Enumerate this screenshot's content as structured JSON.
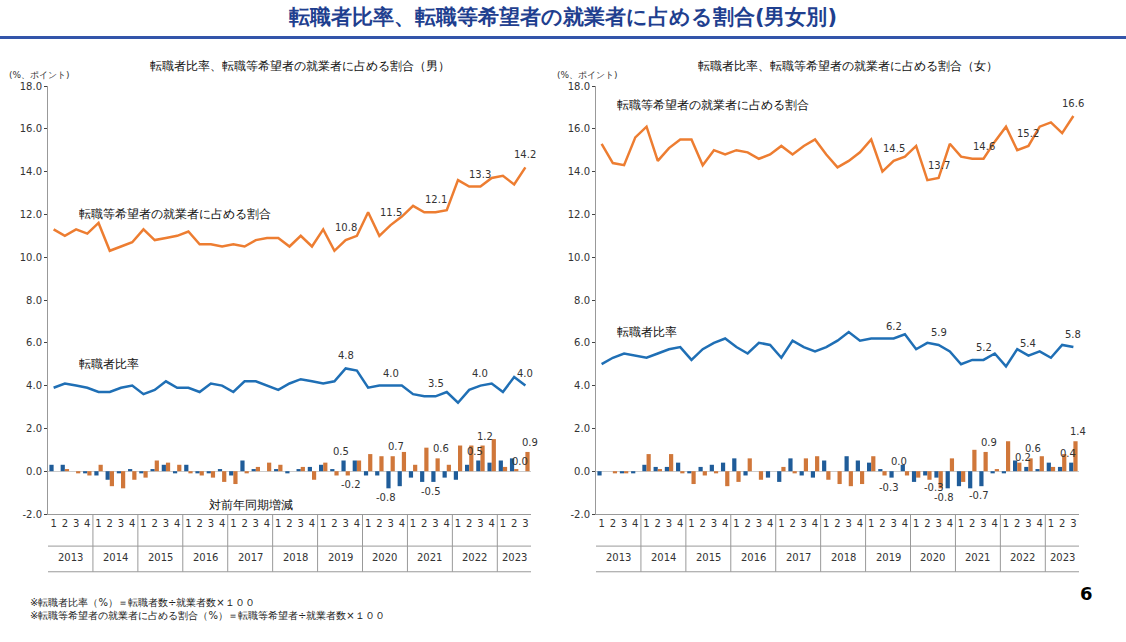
{
  "page_title": "転職者比率、転職等希望者の就業者に占める割合(男女別)",
  "notes": [
    "※転職者比率（%）＝転職者数÷就業者数×１００",
    "※転職等希望者の就業者に占める割合（%）＝転職等希望者÷就業者数×１００"
  ],
  "page_number": "6",
  "chart_data": [
    {
      "type": "line",
      "title": "転職者比率、転職等希望者の就業者に占める割合（男）",
      "y_unit": "(%、ポイント)",
      "bar_caption": "対前年同期増減",
      "categories": [
        "1",
        "2",
        "3",
        "4",
        "1",
        "2",
        "3",
        "4",
        "1",
        "2",
        "3",
        "4",
        "1",
        "2",
        "3",
        "4",
        "1",
        "2",
        "3",
        "4",
        "1",
        "2",
        "3",
        "4",
        "1",
        "2",
        "3",
        "4",
        "1",
        "2",
        "3",
        "4",
        "1",
        "2",
        "3",
        "4",
        "1",
        "2",
        "3",
        "4",
        "1",
        "2",
        "3"
      ],
      "x_groups": [
        "2013",
        "2013",
        "2013",
        "2013",
        "2014",
        "2014",
        "2014",
        "2014",
        "2015",
        "2015",
        "2015",
        "2015",
        "2016",
        "2016",
        "2016",
        "2016",
        "2017",
        "2017",
        "2017",
        "2017",
        "2018",
        "2018",
        "2018",
        "2018",
        "2019",
        "2019",
        "2019",
        "2019",
        "2020",
        "2020",
        "2020",
        "2020",
        "2021",
        "2021",
        "2021",
        "2021",
        "2022",
        "2022",
        "2022",
        "2022",
        "2023",
        "2023",
        "2023"
      ],
      "ylim": [
        -2,
        18
      ],
      "yticks": [
        {
          "value": -2,
          "label": "-2.0"
        },
        {
          "value": 0,
          "label": "0.0"
        },
        {
          "value": 2,
          "label": "2.0"
        },
        {
          "value": 4,
          "label": "4.0"
        },
        {
          "value": 6,
          "label": "6.0"
        },
        {
          "value": 8,
          "label": "8.0"
        },
        {
          "value": 10,
          "label": "10.0"
        },
        {
          "value": 12,
          "label": "12.0"
        },
        {
          "value": 14,
          "label": "14.0"
        },
        {
          "value": 16,
          "label": "16.0"
        },
        {
          "value": 18,
          "label": "18.0"
        }
      ],
      "grid": false,
      "series": [
        {
          "name": "転職等希望者の就業者に占める割合",
          "type": "line",
          "color": "#ED7D31",
          "values": [
            11.3,
            11.0,
            11.3,
            11.1,
            11.6,
            10.3,
            10.5,
            10.7,
            11.3,
            10.8,
            10.9,
            11.0,
            11.2,
            10.6,
            10.6,
            10.5,
            10.6,
            10.5,
            10.8,
            10.9,
            10.9,
            10.5,
            11.0,
            10.5,
            11.3,
            10.3,
            10.8,
            11.0,
            12.1,
            11.0,
            11.5,
            11.9,
            12.4,
            12.1,
            12.1,
            12.2,
            13.6,
            13.3,
            13.3,
            13.7,
            13.8,
            13.4,
            14.2
          ]
        },
        {
          "name": "転職者比率",
          "type": "line",
          "color": "#1F6FB5",
          "values": [
            3.9,
            4.1,
            4.0,
            3.9,
            3.7,
            3.7,
            3.9,
            4.0,
            3.6,
            3.8,
            4.2,
            3.9,
            3.9,
            3.7,
            4.1,
            4.0,
            3.7,
            4.2,
            4.2,
            4.0,
            3.8,
            4.1,
            4.3,
            4.2,
            4.1,
            4.2,
            4.8,
            4.7,
            3.9,
            4.0,
            4.0,
            4.0,
            3.6,
            3.5,
            3.5,
            3.7,
            3.2,
            3.8,
            4.0,
            4.1,
            3.7,
            4.4,
            4.0
          ]
        },
        {
          "type": "bar",
          "color": "#1F5C99",
          "values": [
            0.3,
            0.3,
            0.0,
            -0.1,
            -0.2,
            -0.4,
            -0.1,
            0.1,
            -0.1,
            0.1,
            0.3,
            -0.1,
            0.3,
            -0.1,
            -0.1,
            0.1,
            -0.2,
            0.5,
            0.1,
            0.0,
            0.1,
            -0.1,
            0.1,
            0.2,
            0.3,
            0.1,
            0.5,
            0.5,
            -0.2,
            -0.2,
            -0.8,
            -0.7,
            -0.3,
            -0.5,
            -0.5,
            -0.3,
            -0.4,
            0.3,
            0.5,
            0.4,
            0.5,
            0.6,
            0.0
          ]
        },
        {
          "type": "bar",
          "color": "#D0773A",
          "values": [
            0.0,
            0.1,
            -0.1,
            -0.2,
            0.3,
            -0.7,
            -0.8,
            -0.4,
            -0.3,
            0.5,
            0.4,
            0.3,
            -0.1,
            -0.2,
            -0.3,
            -0.5,
            -0.6,
            -0.1,
            0.2,
            0.4,
            0.3,
            0.0,
            0.2,
            -0.4,
            0.4,
            -0.2,
            -0.2,
            0.5,
            0.8,
            0.7,
            0.7,
            0.9,
            0.3,
            1.1,
            0.6,
            0.3,
            1.2,
            1.2,
            1.2,
            1.5,
            0.2,
            0.1,
            0.9
          ]
        }
      ],
      "point_labels": [
        {
          "series": 0,
          "index": 26,
          "text": "10.8"
        },
        {
          "series": 0,
          "index": 30,
          "text": "11.5"
        },
        {
          "series": 0,
          "index": 34,
          "text": "12.1"
        },
        {
          "series": 0,
          "index": 38,
          "text": "13.3"
        },
        {
          "series": 0,
          "index": 42,
          "text": "14.2"
        },
        {
          "series": 1,
          "index": 26,
          "text": "4.8"
        },
        {
          "series": 1,
          "index": 30,
          "text": "4.0"
        },
        {
          "series": 1,
          "index": 34,
          "text": "3.5"
        },
        {
          "series": 1,
          "index": 38,
          "text": "4.0"
        },
        {
          "series": 1,
          "index": 42,
          "text": "4.0"
        },
        {
          "series": 2,
          "index": 26,
          "text": "0.5"
        },
        {
          "series": 2,
          "index": 30,
          "text": "-0.8"
        },
        {
          "series": 2,
          "index": 34,
          "text": "-0.5"
        },
        {
          "series": 2,
          "index": 38,
          "text": "0.5"
        },
        {
          "series": 2,
          "index": 42,
          "text": "0.0"
        },
        {
          "series": 3,
          "index": 26,
          "text": "-0.2"
        },
        {
          "series": 3,
          "index": 30,
          "text": "0.7"
        },
        {
          "series": 3,
          "index": 34,
          "text": "0.6"
        },
        {
          "series": 3,
          "index": 38,
          "text": "1.2"
        },
        {
          "series": 3,
          "index": 42,
          "text": "0.9"
        }
      ]
    },
    {
      "type": "line",
      "title": "転職者比率、転職等希望者の就業者に占める割合（女）",
      "y_unit": "(%、ポイント)",
      "categories": [
        "1",
        "2",
        "3",
        "4",
        "1",
        "2",
        "3",
        "4",
        "1",
        "2",
        "3",
        "4",
        "1",
        "2",
        "3",
        "4",
        "1",
        "2",
        "3",
        "4",
        "1",
        "2",
        "3",
        "4",
        "1",
        "2",
        "3",
        "4",
        "1",
        "2",
        "3",
        "4",
        "1",
        "2",
        "3",
        "4",
        "1",
        "2",
        "3",
        "4",
        "1",
        "2",
        "3"
      ],
      "x_groups": [
        "2013",
        "2013",
        "2013",
        "2013",
        "2014",
        "2014",
        "2014",
        "2014",
        "2015",
        "2015",
        "2015",
        "2015",
        "2016",
        "2016",
        "2016",
        "2016",
        "2017",
        "2017",
        "2017",
        "2017",
        "2018",
        "2018",
        "2018",
        "2018",
        "2019",
        "2019",
        "2019",
        "2019",
        "2020",
        "2020",
        "2020",
        "2020",
        "2021",
        "2021",
        "2021",
        "2021",
        "2022",
        "2022",
        "2022",
        "2022",
        "2023",
        "2023",
        "2023"
      ],
      "ylim": [
        -2,
        18
      ],
      "yticks": [
        {
          "value": -2,
          "label": "-2.0"
        },
        {
          "value": 0,
          "label": "0.0"
        },
        {
          "value": 2,
          "label": "2.0"
        },
        {
          "value": 4,
          "label": "4.0"
        },
        {
          "value": 6,
          "label": "6.0"
        },
        {
          "value": 8,
          "label": "8.0"
        },
        {
          "value": 10,
          "label": "10.0"
        },
        {
          "value": 12,
          "label": "12.0"
        },
        {
          "value": 14,
          "label": "14.0"
        },
        {
          "value": 16,
          "label": "16.0"
        },
        {
          "value": 18,
          "label": "18.0"
        }
      ],
      "grid": false,
      "series": [
        {
          "name": "転職等希望者の就業者に占める割合",
          "type": "line",
          "color": "#ED7D31",
          "values": [
            15.3,
            14.4,
            14.3,
            15.6,
            16.1,
            14.5,
            15.1,
            15.5,
            15.5,
            14.3,
            15.0,
            14.8,
            15.0,
            14.9,
            14.6,
            14.8,
            15.2,
            14.8,
            15.2,
            15.5,
            14.8,
            14.2,
            14.5,
            14.9,
            15.5,
            14.0,
            14.5,
            14.7,
            15.2,
            13.6,
            13.7,
            15.3,
            14.7,
            14.6,
            14.6,
            15.4,
            16.1,
            15.0,
            15.2,
            16.1,
            16.3,
            15.8,
            16.6
          ]
        },
        {
          "name": "転職者比率",
          "type": "line",
          "color": "#1F6FB5",
          "values": [
            5.0,
            5.3,
            5.5,
            5.4,
            5.3,
            5.5,
            5.7,
            5.8,
            5.2,
            5.7,
            6.0,
            6.2,
            5.8,
            5.5,
            6.0,
            5.9,
            5.3,
            6.1,
            5.8,
            5.6,
            5.8,
            6.1,
            6.5,
            6.1,
            6.2,
            6.2,
            6.2,
            6.4,
            5.7,
            6.0,
            5.9,
            5.6,
            5.0,
            5.2,
            5.2,
            5.5,
            4.9,
            5.7,
            5.4,
            5.6,
            5.3,
            5.9,
            5.8
          ]
        },
        {
          "type": "bar",
          "color": "#1F5C99",
          "values": [
            -0.2,
            0.0,
            -0.1,
            -0.1,
            0.3,
            0.2,
            0.2,
            0.4,
            -0.1,
            0.2,
            0.3,
            0.4,
            0.6,
            -0.2,
            0.0,
            -0.3,
            -0.5,
            0.6,
            -0.2,
            -0.3,
            0.5,
            0.0,
            0.7,
            0.5,
            0.4,
            0.1,
            -0.3,
            0.3,
            -0.5,
            -0.2,
            -0.3,
            -0.8,
            -0.7,
            -0.8,
            -0.7,
            -0.1,
            -0.1,
            0.5,
            0.2,
            0.1,
            0.4,
            0.2,
            0.4
          ]
        },
        {
          "type": "bar",
          "color": "#D0773A",
          "values": [
            0.0,
            -0.1,
            -0.1,
            0.0,
            0.8,
            0.1,
            0.8,
            -0.1,
            -0.6,
            -0.2,
            -0.1,
            -0.7,
            -0.5,
            0.6,
            -0.4,
            0.0,
            0.2,
            -0.1,
            0.6,
            0.7,
            -0.4,
            -0.6,
            -0.7,
            -0.6,
            0.7,
            -0.2,
            0.0,
            -0.2,
            -0.3,
            -0.4,
            -0.8,
            0.6,
            -0.5,
            1.0,
            0.9,
            0.1,
            1.4,
            0.4,
            0.6,
            0.7,
            0.2,
            0.8,
            1.4
          ]
        }
      ],
      "point_labels": [
        {
          "series": 0,
          "index": 26,
          "text": "14.5"
        },
        {
          "series": 0,
          "index": 30,
          "text": "13.7"
        },
        {
          "series": 0,
          "index": 34,
          "text": "14.6"
        },
        {
          "series": 0,
          "index": 38,
          "text": "15.2"
        },
        {
          "series": 0,
          "index": 42,
          "text": "16.6"
        },
        {
          "series": 1,
          "index": 26,
          "text": "6.2"
        },
        {
          "series": 1,
          "index": 30,
          "text": "5.9"
        },
        {
          "series": 1,
          "index": 34,
          "text": "5.2"
        },
        {
          "series": 1,
          "index": 38,
          "text": "5.4"
        },
        {
          "series": 1,
          "index": 42,
          "text": "5.8"
        },
        {
          "series": 2,
          "index": 26,
          "text": "-0.3"
        },
        {
          "series": 2,
          "index": 30,
          "text": "-0.3"
        },
        {
          "series": 2,
          "index": 34,
          "text": "-0.7"
        },
        {
          "series": 2,
          "index": 38,
          "text": "0.2"
        },
        {
          "series": 2,
          "index": 42,
          "text": "0.4"
        },
        {
          "series": 3,
          "index": 26,
          "text": "0.0"
        },
        {
          "series": 3,
          "index": 30,
          "text": "-0.8"
        },
        {
          "series": 3,
          "index": 34,
          "text": "0.9"
        },
        {
          "series": 3,
          "index": 38,
          "text": "0.6"
        },
        {
          "series": 3,
          "index": 42,
          "text": "1.4"
        }
      ]
    }
  ]
}
